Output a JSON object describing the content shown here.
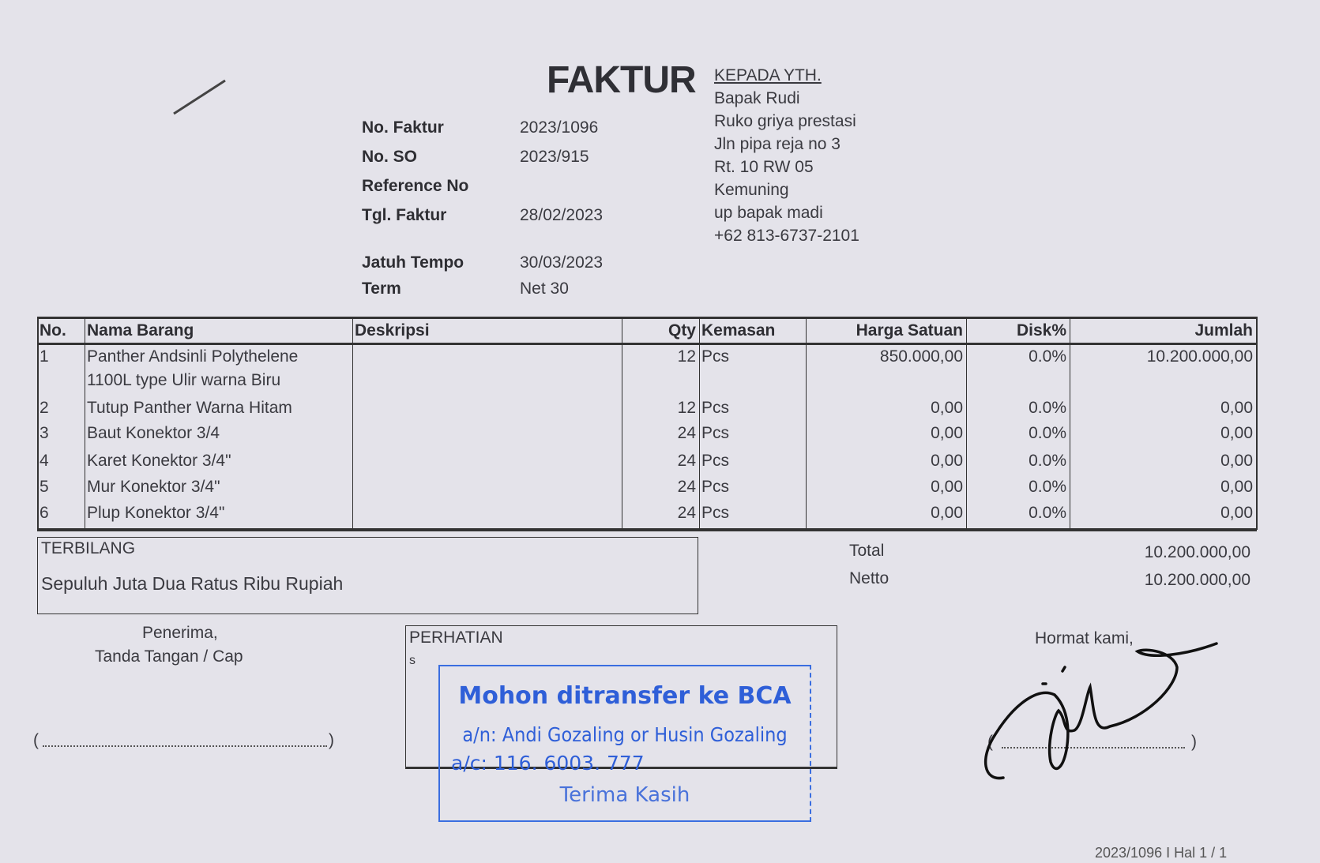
{
  "title": "FAKTUR",
  "recipient": {
    "heading": "KEPADA YTH.",
    "lines": [
      "Bapak Rudi",
      "Ruko griya prestasi",
      "Jln pipa reja no 3",
      "Rt. 10 RW  05",
      "Kemuning",
      "up bapak madi",
      "+62 813-6737-2101"
    ]
  },
  "meta": [
    {
      "label": "No. Faktur",
      "value": "2023/1096"
    },
    {
      "label": "No. SO",
      "value": "2023/915"
    },
    {
      "label": "Reference No",
      "value": ""
    },
    {
      "label": "Tgl. Faktur",
      "value": "28/02/2023"
    },
    {
      "label": "Jatuh Tempo",
      "value": "30/03/2023"
    },
    {
      "label": "Term",
      "value": "Net 30"
    }
  ],
  "table": {
    "headers": [
      "No.",
      "Nama Barang",
      "Deskripsi",
      "Qty",
      "Kemasan",
      "Harga Satuan",
      "Disk%",
      "Jumlah"
    ],
    "rows": [
      {
        "no": "1",
        "name": "Panther Andsinli Polythelene",
        "name2": "1100L  type Ulir warna Biru",
        "desc": "",
        "qty": "12",
        "unit": "Pcs",
        "price": "850.000,00",
        "disc": "0.0%",
        "total": "10.200.000,00"
      },
      {
        "no": "2",
        "name": "Tutup Panther Warna Hitam",
        "desc": "",
        "qty": "12",
        "unit": "Pcs",
        "price": "0,00",
        "disc": "0.0%",
        "total": "0,00"
      },
      {
        "no": "3",
        "name": "Baut Konektor 3/4",
        "desc": "",
        "qty": "24",
        "unit": "Pcs",
        "price": "0,00",
        "disc": "0.0%",
        "total": "0,00"
      },
      {
        "no": "4",
        "name": "Karet Konektor 3/4\"",
        "desc": "",
        "qty": "24",
        "unit": "Pcs",
        "price": "0,00",
        "disc": "0.0%",
        "total": "0,00"
      },
      {
        "no": "5",
        "name": "Mur Konektor 3/4\"",
        "desc": "",
        "qty": "24",
        "unit": "Pcs",
        "price": "0,00",
        "disc": "0.0%",
        "total": "0,00"
      },
      {
        "no": "6",
        "name": "Plup Konektor 3/4\"",
        "desc": "",
        "qty": "24",
        "unit": "Pcs",
        "price": "0,00",
        "disc": "0.0%",
        "total": "0,00"
      }
    ]
  },
  "terbilang": {
    "label": "TERBILANG",
    "text": "Sepuluh Juta Dua Ratus Ribu Rupiah"
  },
  "totals": [
    {
      "label": "Total",
      "value": "10.200.000,00"
    },
    {
      "label": "Netto",
      "value": "10.200.000,00"
    }
  ],
  "receiver": {
    "line1": "Penerima,",
    "line2": "Tanda Tangan / Cap",
    "open": "(",
    "close": ")"
  },
  "attention": {
    "label": "PERHATIAN",
    "note": "s"
  },
  "stamp": {
    "line1": "Mohon ditransfer ke BCA",
    "line2": "a/n: Andi Gozaling or Husin Gozaling",
    "line3": "a/c: 116. 6003. 777",
    "line4": "Terima Kasih",
    "color": "#2f5fd8"
  },
  "sender": {
    "label": "Hormat kami,",
    "open": "(",
    "close": ")"
  },
  "footer": "2023/1096 I Hal 1 / 1"
}
